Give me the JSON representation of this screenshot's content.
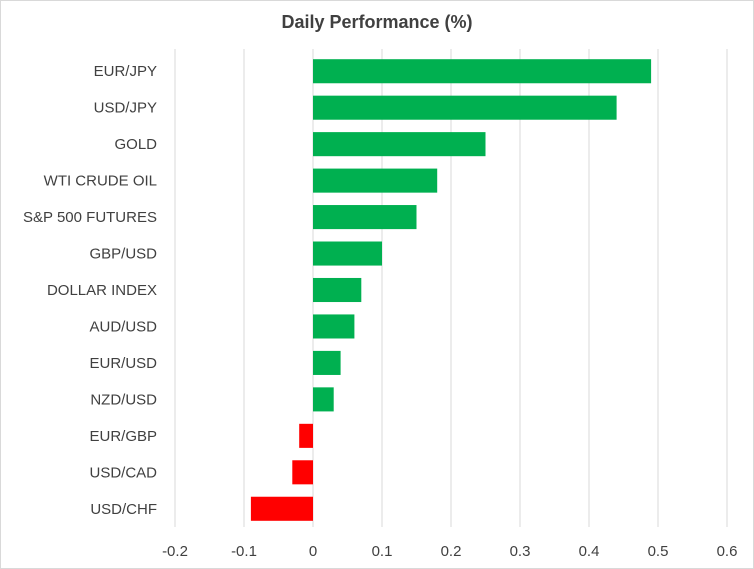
{
  "chart_data": {
    "type": "bar",
    "orientation": "horizontal",
    "title": "Daily Performance (%)",
    "xlabel": "",
    "ylabel": "",
    "categories": [
      "EUR/JPY",
      "USD/JPY",
      "GOLD",
      "WTI CRUDE OIL",
      "S&P 500 FUTURES",
      "GBP/USD",
      "DOLLAR INDEX",
      "AUD/USD",
      "EUR/USD",
      "NZD/USD",
      "EUR/GBP",
      "USD/CAD",
      "USD/CHF"
    ],
    "values": [
      0.49,
      0.44,
      0.25,
      0.18,
      0.15,
      0.1,
      0.07,
      0.06,
      0.04,
      0.03,
      -0.02,
      -0.03,
      -0.09
    ],
    "xlim": [
      -0.2,
      0.6
    ],
    "xticks": [
      "-0.2",
      "-0.1",
      "0",
      "0.1",
      "0.2",
      "0.3",
      "0.4",
      "0.5",
      "0.6"
    ],
    "grid": "vertical",
    "legend": "none",
    "colors": {
      "positive": "#00b050",
      "negative": "#ff0000",
      "grid": "#d9d9d9",
      "text": "#404040"
    }
  }
}
